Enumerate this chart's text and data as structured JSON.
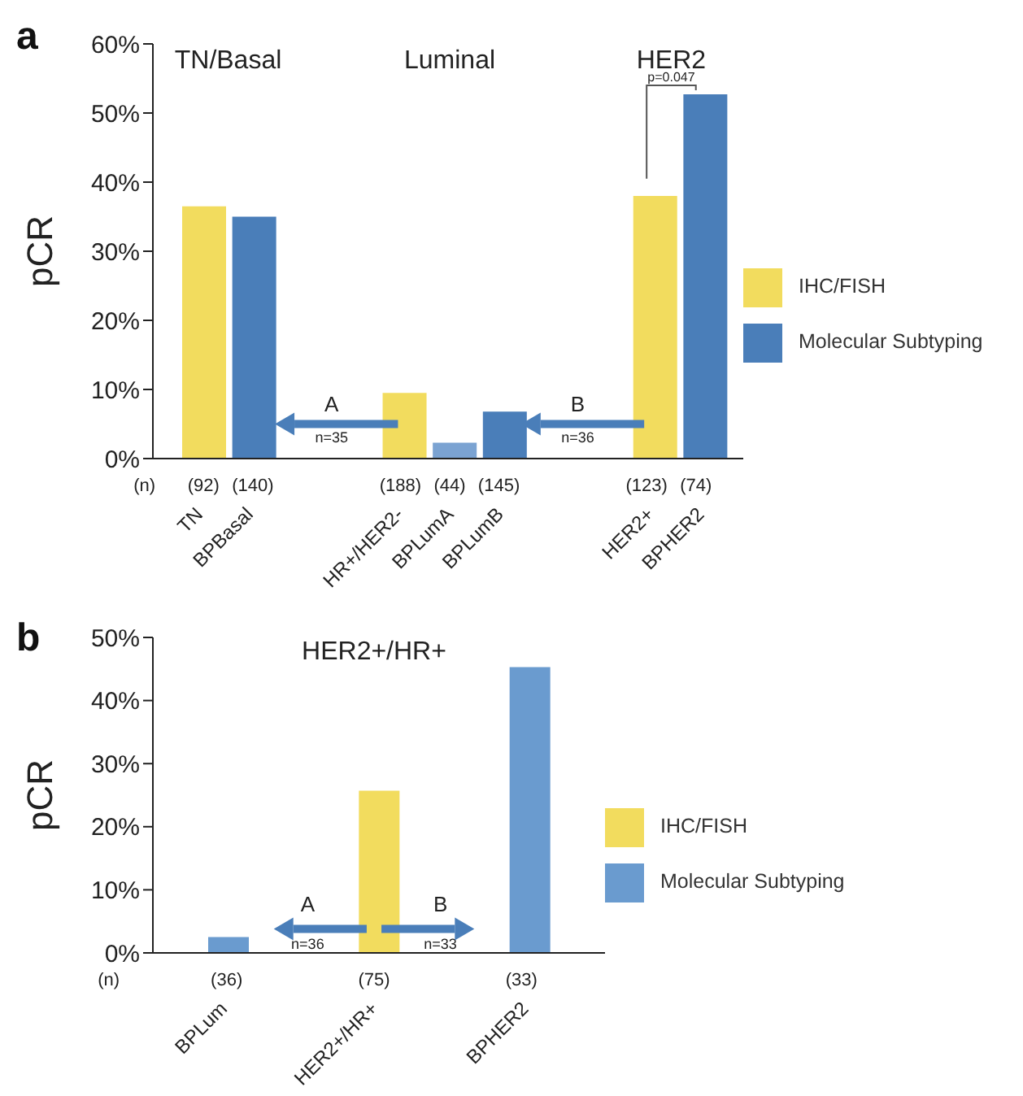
{
  "chart_data": [
    {
      "type": "bar",
      "title": "a",
      "ylabel": "pCR",
      "legend": "right",
      "categories": [
        "TN",
        "BPBasal",
        null,
        null,
        "HR+/HER2-",
        "BPLumA",
        "BPLumB",
        null,
        null,
        "HER2+",
        "BPHER2"
      ],
      "series": [
        {
          "name": "IHC/FISH",
          "color": "#f2dc5e",
          "values": [
            36.5,
            null,
            null,
            null,
            9.5,
            null,
            null,
            null,
            null,
            38,
            null
          ]
        },
        {
          "name": "Molecular Subtyping",
          "color": "#4a7eb9",
          "colors": [
            "#4a7eb9",
            "#4a7eb9",
            "#4a7eb9",
            "#4a7eb9",
            "#4a7eb9",
            "#7ba3d2",
            "#4a7eb9",
            "#4a7eb9",
            "#4a7eb9",
            "#4a7eb9",
            "#4a7eb9"
          ],
          "values": [
            null,
            35,
            null,
            null,
            null,
            2.3,
            6.8,
            null,
            null,
            null,
            52.7
          ]
        }
      ],
      "ylim": [
        0,
        60
      ],
      "yticks": [
        {
          "value": 0,
          "label": "0%"
        },
        {
          "value": 10,
          "label": "10%"
        },
        {
          "value": 20,
          "label": "20%"
        },
        {
          "value": 30,
          "label": "30%"
        },
        {
          "value": 40,
          "label": "40%"
        },
        {
          "value": 50,
          "label": "50%"
        },
        {
          "value": 60,
          "label": "60%"
        }
      ],
      "annotations": [
        "TN/Basal",
        "Luminal",
        "HER2",
        "p=0.047",
        "A",
        "n=35",
        "B",
        "n=36",
        "(n)",
        "(92)",
        "(140)",
        "(188)",
        "(44)",
        "(145)",
        "(123)",
        "(74)"
      ]
    },
    {
      "type": "bar",
      "title": "b",
      "ylabel": "pCR",
      "legend": "right",
      "categories": [
        "BPLum",
        "HER2+/HR+",
        "BPHER2"
      ],
      "series": [
        {
          "name": "IHC/FISH",
          "color": "#f2dc5e",
          "values": [
            null,
            25.7,
            null
          ]
        },
        {
          "name": "Molecular Subtyping",
          "color": "#6a9bcf",
          "values": [
            2.5,
            null,
            45.3
          ]
        }
      ],
      "ylim": [
        0,
        50
      ],
      "yticks": [
        {
          "value": 0,
          "label": "0%"
        },
        {
          "value": 10,
          "label": "10%"
        },
        {
          "value": 20,
          "label": "20%"
        },
        {
          "value": 30,
          "label": "30%"
        },
        {
          "value": 40,
          "label": "40%"
        },
        {
          "value": 50,
          "label": "50%"
        }
      ],
      "annotations": [
        "HER2+/HR+",
        "A",
        "n=36",
        "B",
        "n=33",
        "(n)",
        "(36)",
        "(75)",
        "(33)"
      ]
    }
  ]
}
